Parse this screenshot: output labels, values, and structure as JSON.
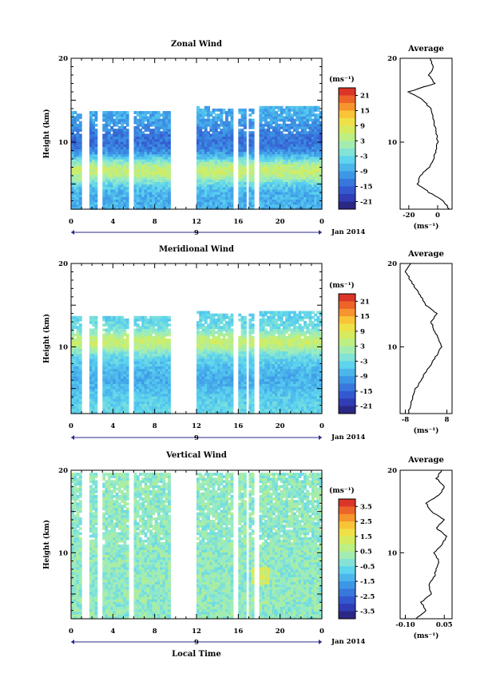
{
  "figure": {
    "date_label": "Jan 2014",
    "day_label": "9",
    "xlabel": "Local Time"
  },
  "chart_data": [
    {
      "type": "heatmap",
      "title": "Zonal Wind",
      "ylabel": "Height (km)",
      "colorbar_unit": "(ms⁻¹)",
      "x_ticks": [
        "0",
        "4",
        "8",
        "12",
        "16",
        "20",
        "0"
      ],
      "y_ticks": [
        "10",
        "20"
      ],
      "ylim": [
        2,
        20
      ],
      "xlim": [
        0,
        24
      ],
      "colorbar_ticks": [
        "21",
        "15",
        "9",
        "3",
        "-3",
        "-9",
        "-15",
        "-21"
      ],
      "color_range": [
        -24,
        24
      ],
      "profile": {
        "title": "Average",
        "x_ticks": [
          "-20",
          "0"
        ],
        "xlim": [
          -26,
          10
        ],
        "xlabel": "(ms⁻¹)",
        "height_km": [
          2,
          3,
          4,
          5,
          6,
          7,
          8,
          9,
          10,
          11,
          12,
          13,
          14,
          15,
          16,
          17,
          18,
          19,
          20
        ],
        "values": [
          8,
          4,
          -6,
          -14,
          -12,
          -6,
          -3,
          -1,
          0,
          -1,
          -2,
          -3,
          -5,
          -10,
          -20,
          -2,
          -6,
          -3,
          -5
        ]
      }
    },
    {
      "type": "heatmap",
      "title": "Meridional Wind",
      "ylabel": "Height (km)",
      "colorbar_unit": "(ms⁻¹)",
      "x_ticks": [
        "0",
        "4",
        "8",
        "12",
        "16",
        "20",
        "0"
      ],
      "y_ticks": [
        "10",
        "20"
      ],
      "ylim": [
        2,
        20
      ],
      "xlim": [
        0,
        24
      ],
      "colorbar_ticks": [
        "21",
        "15",
        "9",
        "3",
        "-3",
        "-9",
        "-15",
        "-21"
      ],
      "color_range": [
        -24,
        24
      ],
      "profile": {
        "title": "Average",
        "x_ticks": [
          "-8",
          "8"
        ],
        "xlim": [
          -10,
          10
        ],
        "xlabel": "(ms⁻¹)",
        "height_km": [
          2,
          3,
          4,
          5,
          6,
          7,
          8,
          9,
          10,
          11,
          12,
          13,
          14,
          15,
          16,
          17,
          18,
          19,
          20
        ],
        "values": [
          -7,
          -6,
          -5,
          -4,
          -2,
          0,
          2,
          4,
          6,
          5,
          3,
          2,
          4,
          0,
          -2,
          -4,
          -6,
          -8,
          -6
        ]
      }
    },
    {
      "type": "heatmap",
      "title": "Vertical Wind",
      "ylabel": "Height (km)",
      "colorbar_unit": "(ms⁻¹)",
      "x_ticks": [
        "0",
        "4",
        "8",
        "12",
        "16",
        "20",
        "0"
      ],
      "y_ticks": [
        "10",
        "20"
      ],
      "ylim": [
        2,
        20
      ],
      "xlim": [
        0,
        24
      ],
      "colorbar_ticks": [
        "3.5",
        "2.5",
        "1.5",
        "0.5",
        "-0.5",
        "-1.5",
        "-2.5",
        "-3.5"
      ],
      "color_range": [
        -4,
        4
      ],
      "profile": {
        "title": "Average",
        "x_ticks": [
          "-0.10",
          "0.05"
        ],
        "xlim": [
          -0.12,
          0.08
        ],
        "xlabel": "(ms⁻¹)",
        "height_km": [
          2,
          3,
          4,
          5,
          6,
          7,
          8,
          9,
          10,
          11,
          12,
          13,
          14,
          15,
          16,
          17,
          18,
          19,
          20
        ],
        "values": [
          -0.06,
          -0.02,
          -0.04,
          0.0,
          -0.01,
          0.01,
          0.02,
          0.03,
          0.01,
          0.04,
          0.06,
          0.02,
          0.05,
          0.0,
          -0.02,
          0.03,
          0.05,
          0.02,
          0.04
        ]
      }
    }
  ]
}
